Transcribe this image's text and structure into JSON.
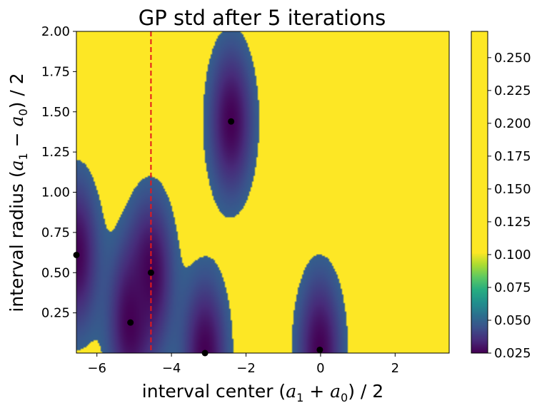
{
  "chart_data": {
    "type": "heatmap",
    "title": "GP std after 5 iterations",
    "xlabel": {
      "prefix": "interval center (",
      "a": "a",
      "sub1": "1",
      "op": " + ",
      "b": "a",
      "sub0": "0",
      "suffix": ") / 2"
    },
    "ylabel": {
      "prefix": "interval radius (",
      "a": "a",
      "sub1": "1",
      "op": " − ",
      "b": "a",
      "sub0": "0",
      "suffix": ") / 2"
    },
    "xlim": [
      -6.55,
      3.45
    ],
    "ylim": [
      0.0,
      2.0
    ],
    "x_ticks": [
      -6,
      -4,
      -2,
      0,
      2
    ],
    "x_tick_labels": [
      "−6",
      "−4",
      "−2",
      "0",
      "2"
    ],
    "y_ticks": [
      0.25,
      0.5,
      0.75,
      1.0,
      1.25,
      1.5,
      1.75,
      2.0
    ],
    "y_tick_labels": [
      "0.25",
      "0.50",
      "0.75",
      "1.00",
      "1.25",
      "1.50",
      "1.75",
      "2.00"
    ],
    "colorbar": {
      "min": 0.025,
      "max": 0.27,
      "ticks": [
        0.025,
        0.05,
        0.075,
        0.1,
        0.125,
        0.15,
        0.175,
        0.2,
        0.225,
        0.25
      ],
      "tick_labels": [
        "0.025",
        "0.050",
        "0.075",
        "0.100",
        "0.125",
        "0.150",
        "0.175",
        "0.200",
        "0.225",
        "0.250"
      ]
    },
    "colormap": "viridis",
    "observations": [
      {
        "x": -6.55,
        "y": 0.61
      },
      {
        "x": -5.1,
        "y": 0.19
      },
      {
        "x": -4.55,
        "y": 0.5
      },
      {
        "x": -3.1,
        "y": 0.0
      },
      {
        "x": -2.4,
        "y": 1.44
      },
      {
        "x": -0.02,
        "y": 0.02
      }
    ],
    "vline": {
      "x": -4.55,
      "color": "#e41a1c",
      "style": "dashed"
    },
    "grid": false
  }
}
